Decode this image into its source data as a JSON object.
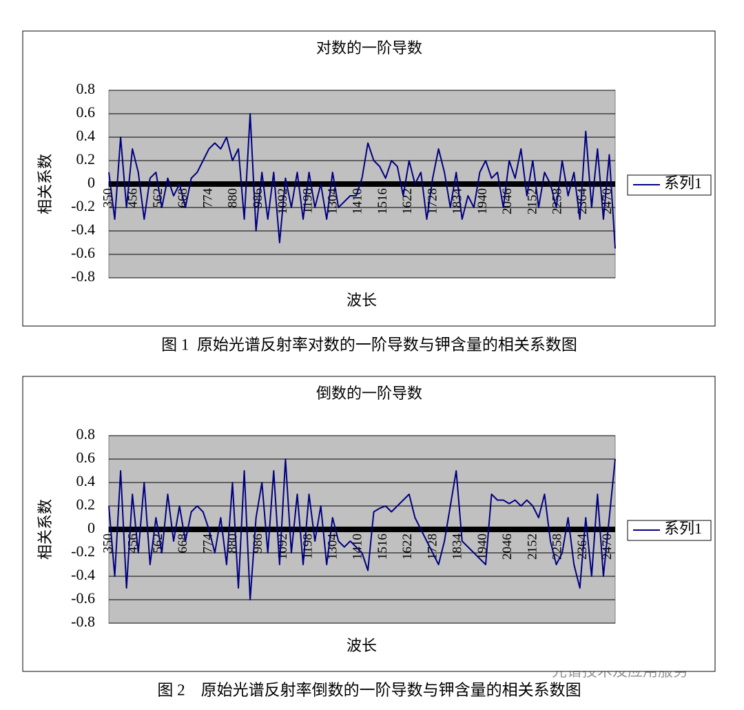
{
  "chart_data": [
    {
      "type": "line",
      "title": "对数的一阶导数",
      "xlabel": "波长",
      "ylabel": "相关系数",
      "caption": "图 1  原始光谱反射率对数的一阶导数与钾含量的相关系数图",
      "xlim": [
        350,
        2500
      ],
      "xticks": [
        350,
        456,
        562,
        668,
        774,
        880,
        986,
        1092,
        1198,
        1304,
        1410,
        1516,
        1622,
        1728,
        1834,
        1940,
        2046,
        2152,
        2258,
        2364,
        2470
      ],
      "ylim": [
        -0.8,
        0.8
      ],
      "yticks": [
        0.8,
        0.6,
        0.4,
        0.2,
        0,
        -0.2,
        -0.4,
        -0.6,
        -0.8
      ],
      "grid": true,
      "legend": "right",
      "x": [
        350,
        375,
        400,
        425,
        450,
        475,
        500,
        525,
        550,
        575,
        600,
        625,
        650,
        675,
        700,
        725,
        750,
        775,
        800,
        825,
        850,
        875,
        900,
        925,
        950,
        975,
        1000,
        1025,
        1050,
        1075,
        1100,
        1125,
        1150,
        1175,
        1200,
        1225,
        1250,
        1275,
        1300,
        1325,
        1350,
        1375,
        1400,
        1425,
        1450,
        1475,
        1500,
        1525,
        1550,
        1575,
        1600,
        1625,
        1650,
        1675,
        1700,
        1725,
        1750,
        1775,
        1800,
        1825,
        1850,
        1875,
        1900,
        1925,
        1950,
        1975,
        2000,
        2025,
        2050,
        2075,
        2100,
        2125,
        2150,
        2175,
        2200,
        2225,
        2250,
        2275,
        2300,
        2325,
        2350,
        2375,
        2400,
        2425,
        2450,
        2475,
        2500
      ],
      "series": [
        {
          "name": "系列1",
          "color": "#000080",
          "values": [
            0.1,
            -0.3,
            0.4,
            -0.2,
            0.3,
            0.1,
            -0.3,
            0.05,
            0.1,
            -0.2,
            0.05,
            -0.1,
            0,
            -0.2,
            0.05,
            0.1,
            0.2,
            0.3,
            0.35,
            0.3,
            0.4,
            0.2,
            0.3,
            -0.3,
            0.6,
            -0.4,
            0.1,
            -0.3,
            0.1,
            -0.5,
            0.05,
            -0.2,
            0.1,
            -0.3,
            0.1,
            -0.2,
            0,
            -0.3,
            0.1,
            -0.2,
            -0.15,
            -0.1,
            -0.1,
            0.05,
            0.35,
            0.2,
            0.15,
            0.05,
            0.2,
            0.15,
            -0.1,
            0.2,
            0,
            0.1,
            -0.3,
            0.05,
            0.3,
            0.1,
            -0.2,
            0.1,
            -0.3,
            -0.1,
            -0.2,
            0.1,
            0.2,
            0.05,
            0.1,
            -0.2,
            0.2,
            0.05,
            0.3,
            -0.1,
            0.2,
            -0.2,
            0.1,
            0,
            -0.2,
            0.2,
            -0.1,
            0.1,
            -0.3,
            0.45,
            -0.2,
            0.3,
            -0.3,
            0.25,
            -0.55
          ]
        }
      ]
    },
    {
      "type": "line",
      "title": "倒数的一阶导数",
      "xlabel": "波长",
      "ylabel": "相关系数",
      "caption": "图 2    原始光谱反射率倒数的一阶导数与钾含量的相关系数图",
      "xlim": [
        350,
        2500
      ],
      "xticks": [
        350,
        456,
        562,
        668,
        774,
        880,
        986,
        1092,
        1198,
        1304,
        1410,
        1516,
        1622,
        1728,
        1834,
        1940,
        2046,
        2152,
        2258,
        2364,
        2470
      ],
      "ylim": [
        -0.8,
        0.8
      ],
      "yticks": [
        0.8,
        0.6,
        0.4,
        0.2,
        0,
        -0.2,
        -0.4,
        -0.6,
        -0.8
      ],
      "grid": true,
      "legend": "right",
      "x": [
        350,
        375,
        400,
        425,
        450,
        475,
        500,
        525,
        550,
        575,
        600,
        625,
        650,
        675,
        700,
        725,
        750,
        775,
        800,
        825,
        850,
        875,
        900,
        925,
        950,
        975,
        1000,
        1025,
        1050,
        1075,
        1100,
        1125,
        1150,
        1175,
        1200,
        1225,
        1250,
        1275,
        1300,
        1325,
        1350,
        1375,
        1400,
        1425,
        1450,
        1475,
        1500,
        1525,
        1550,
        1575,
        1600,
        1625,
        1650,
        1675,
        1700,
        1725,
        1750,
        1775,
        1800,
        1825,
        1850,
        1875,
        1900,
        1925,
        1950,
        1975,
        2000,
        2025,
        2050,
        2075,
        2100,
        2125,
        2150,
        2175,
        2200,
        2225,
        2250,
        2275,
        2300,
        2325,
        2350,
        2375,
        2400,
        2425,
        2450,
        2475,
        2500
      ],
      "series": [
        {
          "name": "系列1",
          "color": "#000080",
          "values": [
            0.2,
            -0.4,
            0.5,
            -0.5,
            0.3,
            -0.2,
            0.4,
            -0.3,
            0.1,
            -0.2,
            0.3,
            -0.1,
            0.2,
            -0.1,
            0.15,
            0.2,
            0.15,
            0,
            -0.2,
            0.1,
            -0.3,
            0.4,
            -0.5,
            0.5,
            -0.6,
            0.1,
            0.4,
            -0.2,
            0.5,
            -0.3,
            0.6,
            -0.2,
            0.3,
            -0.3,
            0.3,
            -0.1,
            0.2,
            -0.3,
            0.1,
            -0.1,
            -0.15,
            -0.1,
            -0.15,
            -0.2,
            -0.35,
            0.15,
            0.18,
            0.2,
            0.15,
            0.2,
            0.25,
            0.3,
            0.1,
            0,
            -0.1,
            -0.2,
            -0.3,
            -0.1,
            0.2,
            0.5,
            -0.1,
            -0.15,
            -0.2,
            -0.25,
            -0.3,
            0.3,
            0.25,
            0.25,
            0.22,
            0.25,
            0.2,
            0.25,
            0.2,
            0.1,
            0.3,
            -0.1,
            -0.3,
            -0.2,
            0.1,
            -0.3,
            -0.5,
            0.1,
            -0.4,
            0.3,
            -0.4,
            0.1,
            0.6
          ]
        }
      ]
    }
  ],
  "watermark": "光谱技术及应用服务"
}
